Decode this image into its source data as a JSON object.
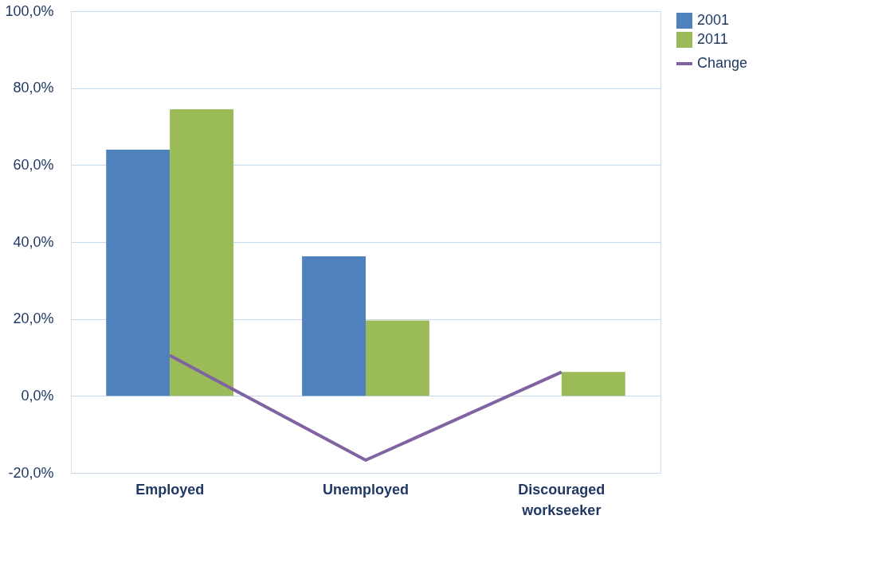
{
  "chart_data": {
    "type": "bar",
    "categories": [
      "Employed",
      "Unemployed",
      "Discouraged workseeker"
    ],
    "series": [
      {
        "name": "2001",
        "color": "#4f81bd",
        "values": [
          64.0,
          36.3,
          null
        ]
      },
      {
        "name": "2011",
        "color": "#9bbb59",
        "values": [
          74.5,
          19.6,
          6.2
        ]
      },
      {
        "name": "Change",
        "type": "line",
        "color": "#8064a2",
        "values": [
          10.5,
          -16.7,
          6.2
        ]
      }
    ],
    "ylim": [
      -20,
      100
    ],
    "yticks": [
      {
        "value": -20,
        "label": "-20,0%"
      },
      {
        "value": 0,
        "label": "0,0%"
      },
      {
        "value": 20,
        "label": "20,0%"
      },
      {
        "value": 40,
        "label": "40,0%"
      },
      {
        "value": 60,
        "label": "60,0%"
      },
      {
        "value": 80,
        "label": "80,0%"
      },
      {
        "value": 100,
        "label": "100,0%"
      }
    ],
    "grid": "y",
    "legend": "right",
    "marker": "none",
    "line_style": "solid"
  }
}
